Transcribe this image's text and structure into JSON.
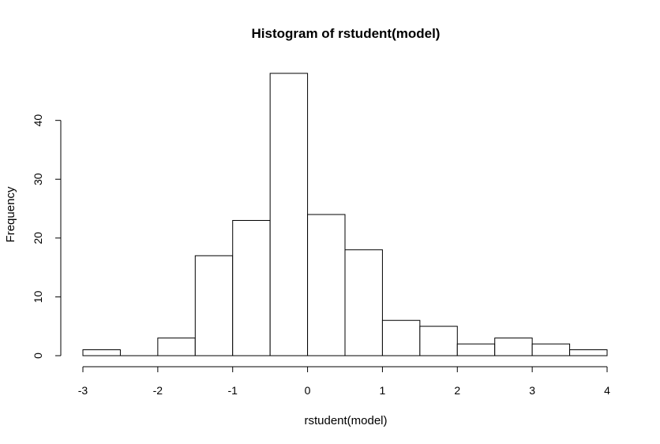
{
  "chart_data": {
    "type": "bar",
    "title": "Histogram of rstudent(model)",
    "xlabel": "rstudent(model)",
    "ylabel": "Frequency",
    "bins": [
      {
        "start": -3.0,
        "end": -2.5,
        "count": 1
      },
      {
        "start": -2.5,
        "end": -2.0,
        "count": 0
      },
      {
        "start": -2.0,
        "end": -1.5,
        "count": 3
      },
      {
        "start": -1.5,
        "end": -1.0,
        "count": 17
      },
      {
        "start": -1.0,
        "end": -0.5,
        "count": 23
      },
      {
        "start": -0.5,
        "end": 0.0,
        "count": 48
      },
      {
        "start": 0.0,
        "end": 0.5,
        "count": 24
      },
      {
        "start": 0.5,
        "end": 1.0,
        "count": 18
      },
      {
        "start": 1.0,
        "end": 1.5,
        "count": 6
      },
      {
        "start": 1.5,
        "end": 2.0,
        "count": 5
      },
      {
        "start": 2.0,
        "end": 2.5,
        "count": 2
      },
      {
        "start": 2.5,
        "end": 3.0,
        "count": 3
      },
      {
        "start": 3.0,
        "end": 3.5,
        "count": 2
      },
      {
        "start": 3.5,
        "end": 4.0,
        "count": 1
      }
    ],
    "xlim": [
      -3,
      4
    ],
    "ylim": [
      0,
      48
    ],
    "x_ticks": [
      -3,
      -2,
      -1,
      0,
      1,
      2,
      3,
      4
    ],
    "y_ticks": [
      0,
      10,
      20,
      30,
      40
    ],
    "grid": false,
    "bar_fill": "#ffffff",
    "bar_stroke": "#000000"
  }
}
